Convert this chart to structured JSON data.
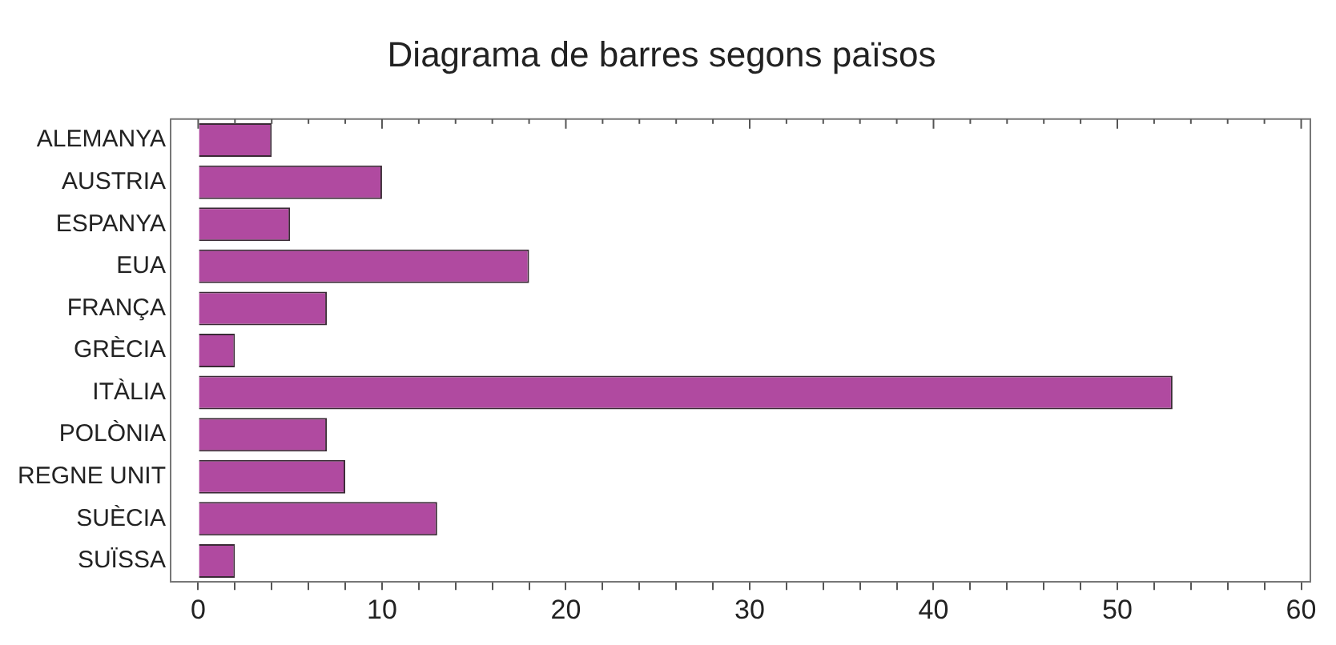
{
  "chart_data": {
    "type": "bar",
    "orientation": "horizontal",
    "title": "Diagrama de barres segons països",
    "categories": [
      "ALEMANYA",
      "AUSTRIA",
      "ESPANYA",
      "EUA",
      "FRANÇA",
      "GRÈCIA",
      "ITÀLIA",
      "POLÒNIA",
      "REGNE UNIT",
      "SUÈCIA",
      "SUÏSSA"
    ],
    "values": [
      4,
      10,
      5,
      18,
      7,
      2,
      53,
      7,
      8,
      13,
      2
    ],
    "color": "#b04aa0",
    "xlim": [
      -1.5,
      60.5
    ],
    "xticks": [
      0,
      {
        "value": 2,
        "label": null
      },
      {
        "value": 4,
        "label": null
      },
      {
        "value": 6,
        "label": null
      },
      {
        "value": 8,
        "label": null
      },
      10,
      {
        "value": 12,
        "label": null
      },
      {
        "value": 14,
        "label": null
      },
      {
        "value": 16,
        "label": null
      },
      {
        "value": 18,
        "label": null
      },
      20,
      {
        "value": 22,
        "label": null
      },
      {
        "value": 24,
        "label": null
      },
      {
        "value": 26,
        "label": null
      },
      {
        "value": 28,
        "label": null
      },
      30,
      {
        "value": 32,
        "label": null
      },
      {
        "value": 34,
        "label": null
      },
      {
        "value": 36,
        "label": null
      },
      {
        "value": 38,
        "label": null
      },
      40,
      {
        "value": 42,
        "label": null
      },
      {
        "value": 44,
        "label": null
      },
      {
        "value": 46,
        "label": null
      },
      {
        "value": 48,
        "label": null
      },
      50,
      {
        "value": 52,
        "label": null
      },
      {
        "value": 54,
        "label": null
      },
      {
        "value": 56,
        "label": null
      },
      {
        "value": 58,
        "label": null
      },
      60
    ],
    "grid": false,
    "legend": false
  }
}
